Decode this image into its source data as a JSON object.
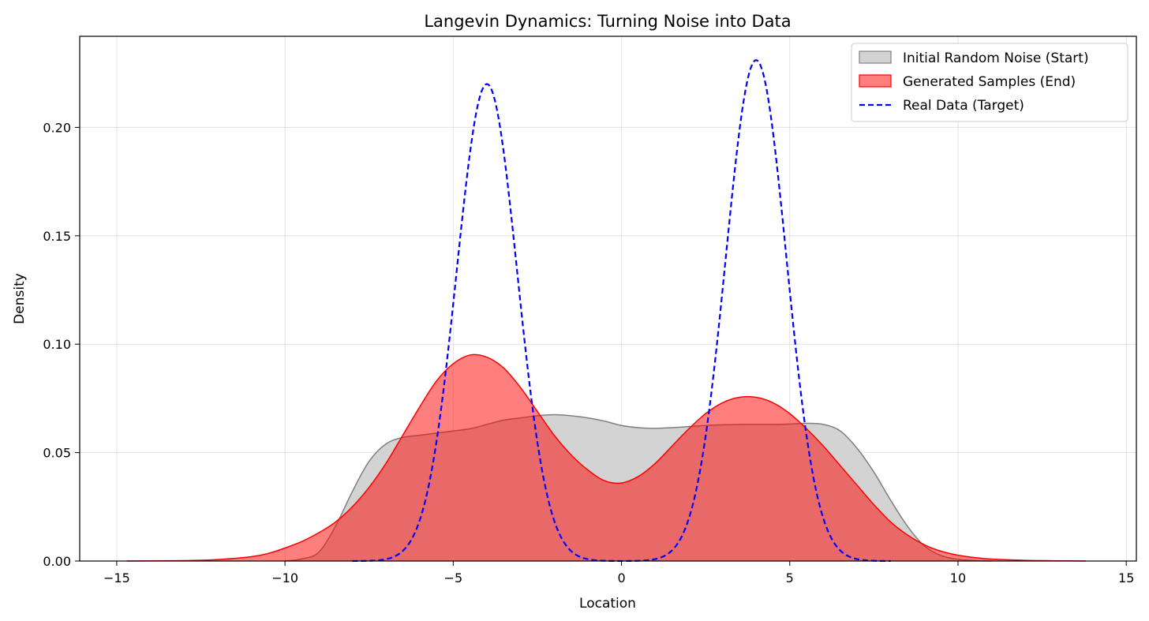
{
  "chart_data": {
    "type": "area",
    "title": "Langevin Dynamics: Turning Noise into Data",
    "xlabel": "Location",
    "ylabel": "Density",
    "xlim": [
      -16.1,
      15.3
    ],
    "ylim": [
      0,
      0.242
    ],
    "xticks": [
      -15,
      -10,
      -5,
      0,
      5,
      10,
      15
    ],
    "xtick_labels": [
      "−15",
      "−10",
      "−5",
      "0",
      "5",
      "10",
      "15"
    ],
    "yticks": [
      0.0,
      0.05,
      0.1,
      0.15,
      0.2
    ],
    "ytick_labels": [
      "0.00",
      "0.05",
      "0.10",
      "0.15",
      "0.20"
    ],
    "grid": true,
    "legend_position": "top-right",
    "series": [
      {
        "name": "Initial Random Noise (Start)",
        "style": "filled",
        "fill": "#d3d3d3",
        "stroke": "#808080",
        "x": [
          -10,
          -9.5,
          -9,
          -8.5,
          -8,
          -7.5,
          -7,
          -6.5,
          -6,
          -5.5,
          -5,
          -4.5,
          -4,
          -3.5,
          -3,
          -2.5,
          -2,
          -1.5,
          -1,
          -0.5,
          0,
          0.5,
          1,
          1.5,
          2,
          2.5,
          3,
          3.5,
          4,
          4.5,
          5,
          5.5,
          6,
          6.5,
          7,
          7.5,
          8,
          8.5,
          9,
          9.5,
          10,
          10.5,
          11
        ],
        "y": [
          0.0,
          0.001,
          0.004,
          0.016,
          0.032,
          0.046,
          0.054,
          0.057,
          0.058,
          0.059,
          0.06,
          0.061,
          0.063,
          0.065,
          0.066,
          0.067,
          0.0675,
          0.067,
          0.066,
          0.0645,
          0.0625,
          0.0615,
          0.0612,
          0.0615,
          0.062,
          0.0625,
          0.0628,
          0.063,
          0.063,
          0.063,
          0.0632,
          0.0635,
          0.063,
          0.06,
          0.052,
          0.041,
          0.028,
          0.016,
          0.007,
          0.0025,
          0.0008,
          0.0002,
          0.0
        ]
      },
      {
        "name": "Generated Samples (End)",
        "style": "filled",
        "fill": "#ff0000",
        "fill_opacity": 0.5,
        "stroke": "#ff0000",
        "x": [
          -14.7,
          -13,
          -12,
          -11,
          -10.5,
          -10,
          -9.5,
          -9,
          -8.5,
          -8,
          -7.5,
          -7,
          -6.5,
          -6,
          -5.5,
          -5,
          -4.5,
          -4,
          -3.5,
          -3,
          -2.5,
          -2,
          -1.5,
          -1,
          -0.5,
          0,
          0.5,
          1,
          1.5,
          2,
          2.5,
          3,
          3.5,
          4,
          4.5,
          5,
          5.5,
          6,
          6.5,
          7,
          7.5,
          8,
          8.5,
          9,
          9.5,
          10,
          10.5,
          11,
          12,
          13,
          13.8
        ],
        "y": [
          0.0,
          0.0002,
          0.0007,
          0.002,
          0.0035,
          0.006,
          0.009,
          0.013,
          0.018,
          0.025,
          0.034,
          0.045,
          0.058,
          0.071,
          0.083,
          0.091,
          0.095,
          0.094,
          0.089,
          0.08,
          0.069,
          0.058,
          0.049,
          0.042,
          0.037,
          0.036,
          0.039,
          0.045,
          0.053,
          0.061,
          0.068,
          0.073,
          0.0755,
          0.0755,
          0.073,
          0.068,
          0.061,
          0.053,
          0.044,
          0.035,
          0.026,
          0.018,
          0.012,
          0.0075,
          0.0045,
          0.0027,
          0.0016,
          0.0009,
          0.0003,
          0.0001,
          0.0
        ]
      },
      {
        "name": "Real Data (Target)",
        "style": "dashed-line",
        "stroke": "#0000ff",
        "mixture": {
          "x_range": [
            -8,
            8
          ],
          "components": [
            {
              "mean": -4,
              "sd": 0.9,
              "peak": 0.22
            },
            {
              "mean": 4,
              "sd": 0.9,
              "peak": 0.231
            }
          ]
        }
      }
    ]
  }
}
